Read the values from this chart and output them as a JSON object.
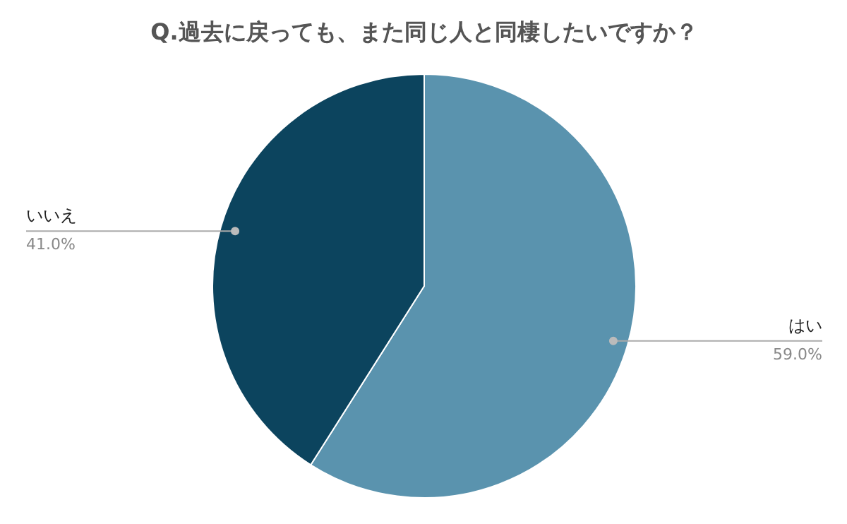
{
  "chart_data": {
    "type": "pie",
    "title": "Q.過去に戻っても、また同じ人と同棲したいですか？",
    "categories": [
      "はい",
      "いいえ"
    ],
    "values": [
      59.0,
      41.0
    ],
    "colors": [
      "#5a93ae",
      "#0c445e"
    ],
    "value_labels": [
      "59.0%",
      "41.0%"
    ]
  }
}
